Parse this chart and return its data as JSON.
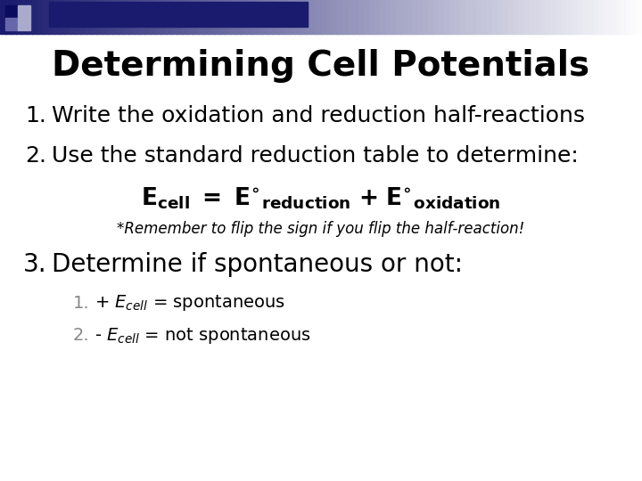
{
  "title": "Determining Cell Potentials",
  "background_color": "#ffffff",
  "title_color": "#000000",
  "title_fontsize": 28,
  "item1": "Write the oxidation and reduction half-reactions",
  "item2": "Use the standard reduction table to determine:",
  "item3": "Determine if spontaneous or not:",
  "italic_note": "*Remember to flip the sign if you flip the half-reaction!",
  "item_fontsize": 18,
  "item3_fontsize": 20,
  "formula_fontsize": 19,
  "note_fontsize": 12,
  "sub_fontsize": 14,
  "sub_num_color": "#888888",
  "text_color": "#000000",
  "header_gradient_start": "#1a1a6e",
  "header_gradient_end": "#ffffff",
  "sq_dark": "#0a0a5e",
  "sq_mid1": "#6666aa",
  "sq_mid2": "#aaaacc",
  "sq_light": "#ccccdd"
}
